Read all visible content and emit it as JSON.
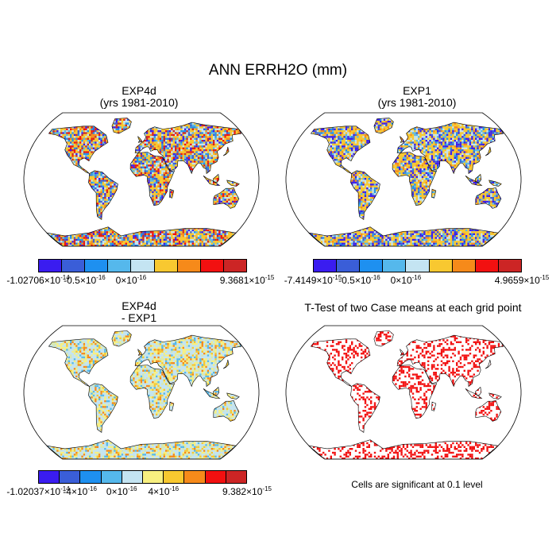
{
  "main_title": "ANN ERRH2O (mm)",
  "panels": [
    {
      "id": "exp4d",
      "title_line1": "EXP4d",
      "title_line2": "(yrs 1981-2010)",
      "style": "mixed-dense",
      "colorbar": {
        "colors": [
          "#3a1cf0",
          "#3a5ed8",
          "#1e90f0",
          "#55b8ec",
          "#c4e4f2",
          "#f8c830",
          "#f68a1a",
          "#f21010",
          "#cc2525"
        ],
        "labels": [
          {
            "m": "-1.02706",
            "e": "-14"
          },
          {
            "m": "-0.5",
            "e": "-16"
          },
          {
            "m": "0",
            "e": "-16"
          },
          {
            "m": "9.3681",
            "e": "-15"
          }
        ]
      }
    },
    {
      "id": "exp1",
      "title_line1": "EXP1",
      "title_line2": "(yrs 1981-2010)",
      "style": "mixed-blue",
      "colorbar": {
        "colors": [
          "#3a1cf0",
          "#3a5ed8",
          "#1e90f0",
          "#55b8ec",
          "#c4e4f2",
          "#f8c830",
          "#f68a1a",
          "#f21010",
          "#cc2525"
        ],
        "labels": [
          {
            "m": "-7.4149",
            "e": "-15"
          },
          {
            "m": "-0.5",
            "e": "-16"
          },
          {
            "m": "0",
            "e": "-16"
          },
          {
            "m": "4.9659",
            "e": "-15"
          }
        ]
      }
    },
    {
      "id": "diff",
      "title_line1": "EXP4d",
      "title_line2": "- EXP1",
      "style": "diff",
      "colorbar": {
        "colors": [
          "#3a1cf0",
          "#3a5ed8",
          "#1e90f0",
          "#55b8ec",
          "#c4e4f2",
          "#f8f080",
          "#f8c830",
          "#f68a1a",
          "#f21010",
          "#cc2525"
        ],
        "labels": [
          {
            "m": "-1.02037",
            "e": "-14"
          },
          {
            "m": "-4",
            "e": "-16"
          },
          {
            "m": "0",
            "e": "-16"
          },
          {
            "m": "4",
            "e": "-16"
          },
          {
            "m": "9.382",
            "e": "-15"
          }
        ]
      }
    },
    {
      "id": "ttest",
      "title_line1": "T-Test of two Case means at each grid point",
      "title_line2": "",
      "style": "ttest"
    }
  ],
  "ttest_note": "Cells are significant at 0.1 level",
  "times_sign": "×10"
}
